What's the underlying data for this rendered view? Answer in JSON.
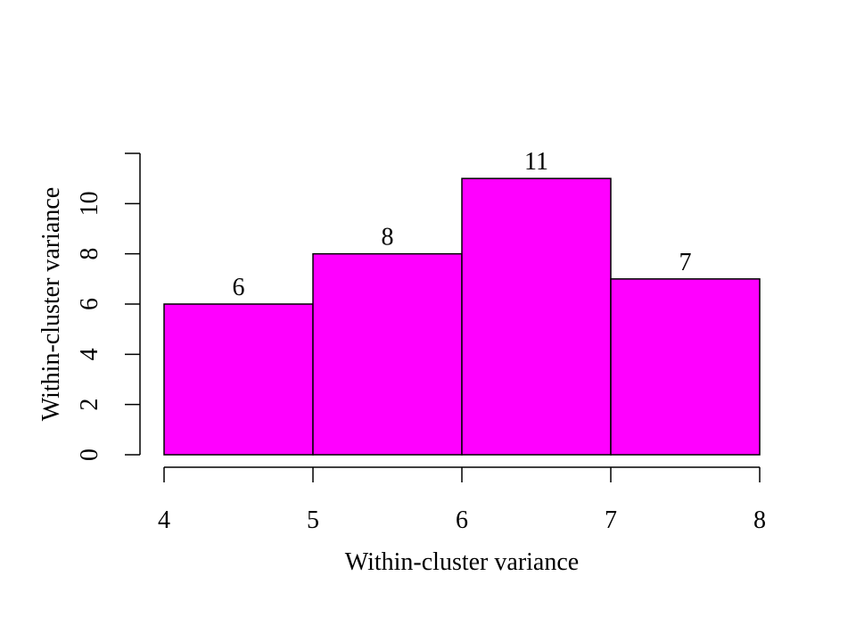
{
  "chart_data": {
    "type": "bar",
    "histogram": true,
    "bins": [
      {
        "start": 4,
        "end": 5,
        "value": 6,
        "label": "6"
      },
      {
        "start": 5,
        "end": 6,
        "value": 8,
        "label": "8"
      },
      {
        "start": 6,
        "end": 7,
        "value": 11,
        "label": "11"
      },
      {
        "start": 7,
        "end": 8,
        "value": 7,
        "label": "7"
      }
    ],
    "xlabel": "Within-cluster variance",
    "ylabel": "Within-cluster variance",
    "xlim": [
      4,
      8
    ],
    "ylim": [
      0,
      12
    ],
    "x_ticks": [
      "4",
      "5",
      "6",
      "7",
      "8"
    ],
    "y_ticks": [
      "0",
      "2",
      "4",
      "6",
      "8",
      "10"
    ],
    "bar_color": "#ff00ff",
    "grid": false
  }
}
